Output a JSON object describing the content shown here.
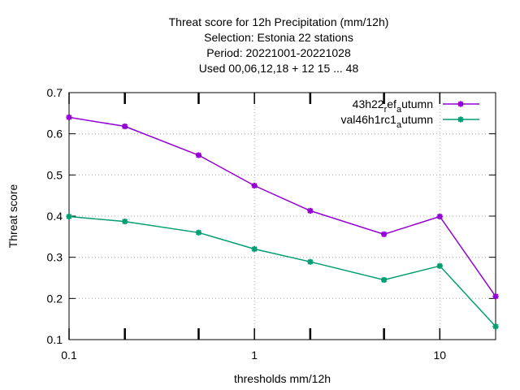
{
  "chart_data": {
    "type": "line",
    "title_lines": [
      "Threat score  for 12h Precipitation (mm/12h)",
      "Selection: Estonia      22 stations",
      "Period: 20221001-20221028",
      "Used  00,06,12,18  + 12 15 ... 48"
    ],
    "xlabel": "thresholds mm/12h",
    "ylabel": "Threat score",
    "x_scale": "log",
    "xlim": [
      0.1,
      20
    ],
    "ylim": [
      0.1,
      0.7
    ],
    "x_ticks": [
      {
        "value": 0.1,
        "label": "0.1"
      },
      {
        "value": 1,
        "label": "1"
      },
      {
        "value": 10,
        "label": "10"
      }
    ],
    "y_ticks": [
      {
        "value": 0.1,
        "label": "0.1"
      },
      {
        "value": 0.2,
        "label": "0.2"
      },
      {
        "value": 0.3,
        "label": "0.3"
      },
      {
        "value": 0.4,
        "label": "0.4"
      },
      {
        "value": 0.5,
        "label": "0.5"
      },
      {
        "value": 0.6,
        "label": "0.6"
      },
      {
        "value": 0.7,
        "label": "0.7"
      }
    ],
    "minor_x_ticks": [
      0.2,
      0.5,
      2,
      5
    ],
    "grid": true,
    "legend_position": "top-right",
    "x": [
      0.1,
      0.2,
      0.5,
      1,
      2,
      5,
      10,
      20
    ],
    "series": [
      {
        "legend_main": "43h22",
        "legend_sub1": "r",
        "legend_mid": "ef",
        "legend_sub2": "a",
        "legend_end": "utumn",
        "color": "#9400d3",
        "values": [
          0.64,
          0.618,
          0.548,
          0.474,
          0.413,
          0.356,
          0.399,
          0.205
        ]
      },
      {
        "legend_main": "val46h1rc1",
        "legend_sub1": "",
        "legend_mid": "",
        "legend_sub2": "a",
        "legend_end": "utumn",
        "color": "#009e73",
        "values": [
          0.399,
          0.387,
          0.36,
          0.32,
          0.289,
          0.245,
          0.279,
          0.132
        ]
      }
    ]
  }
}
